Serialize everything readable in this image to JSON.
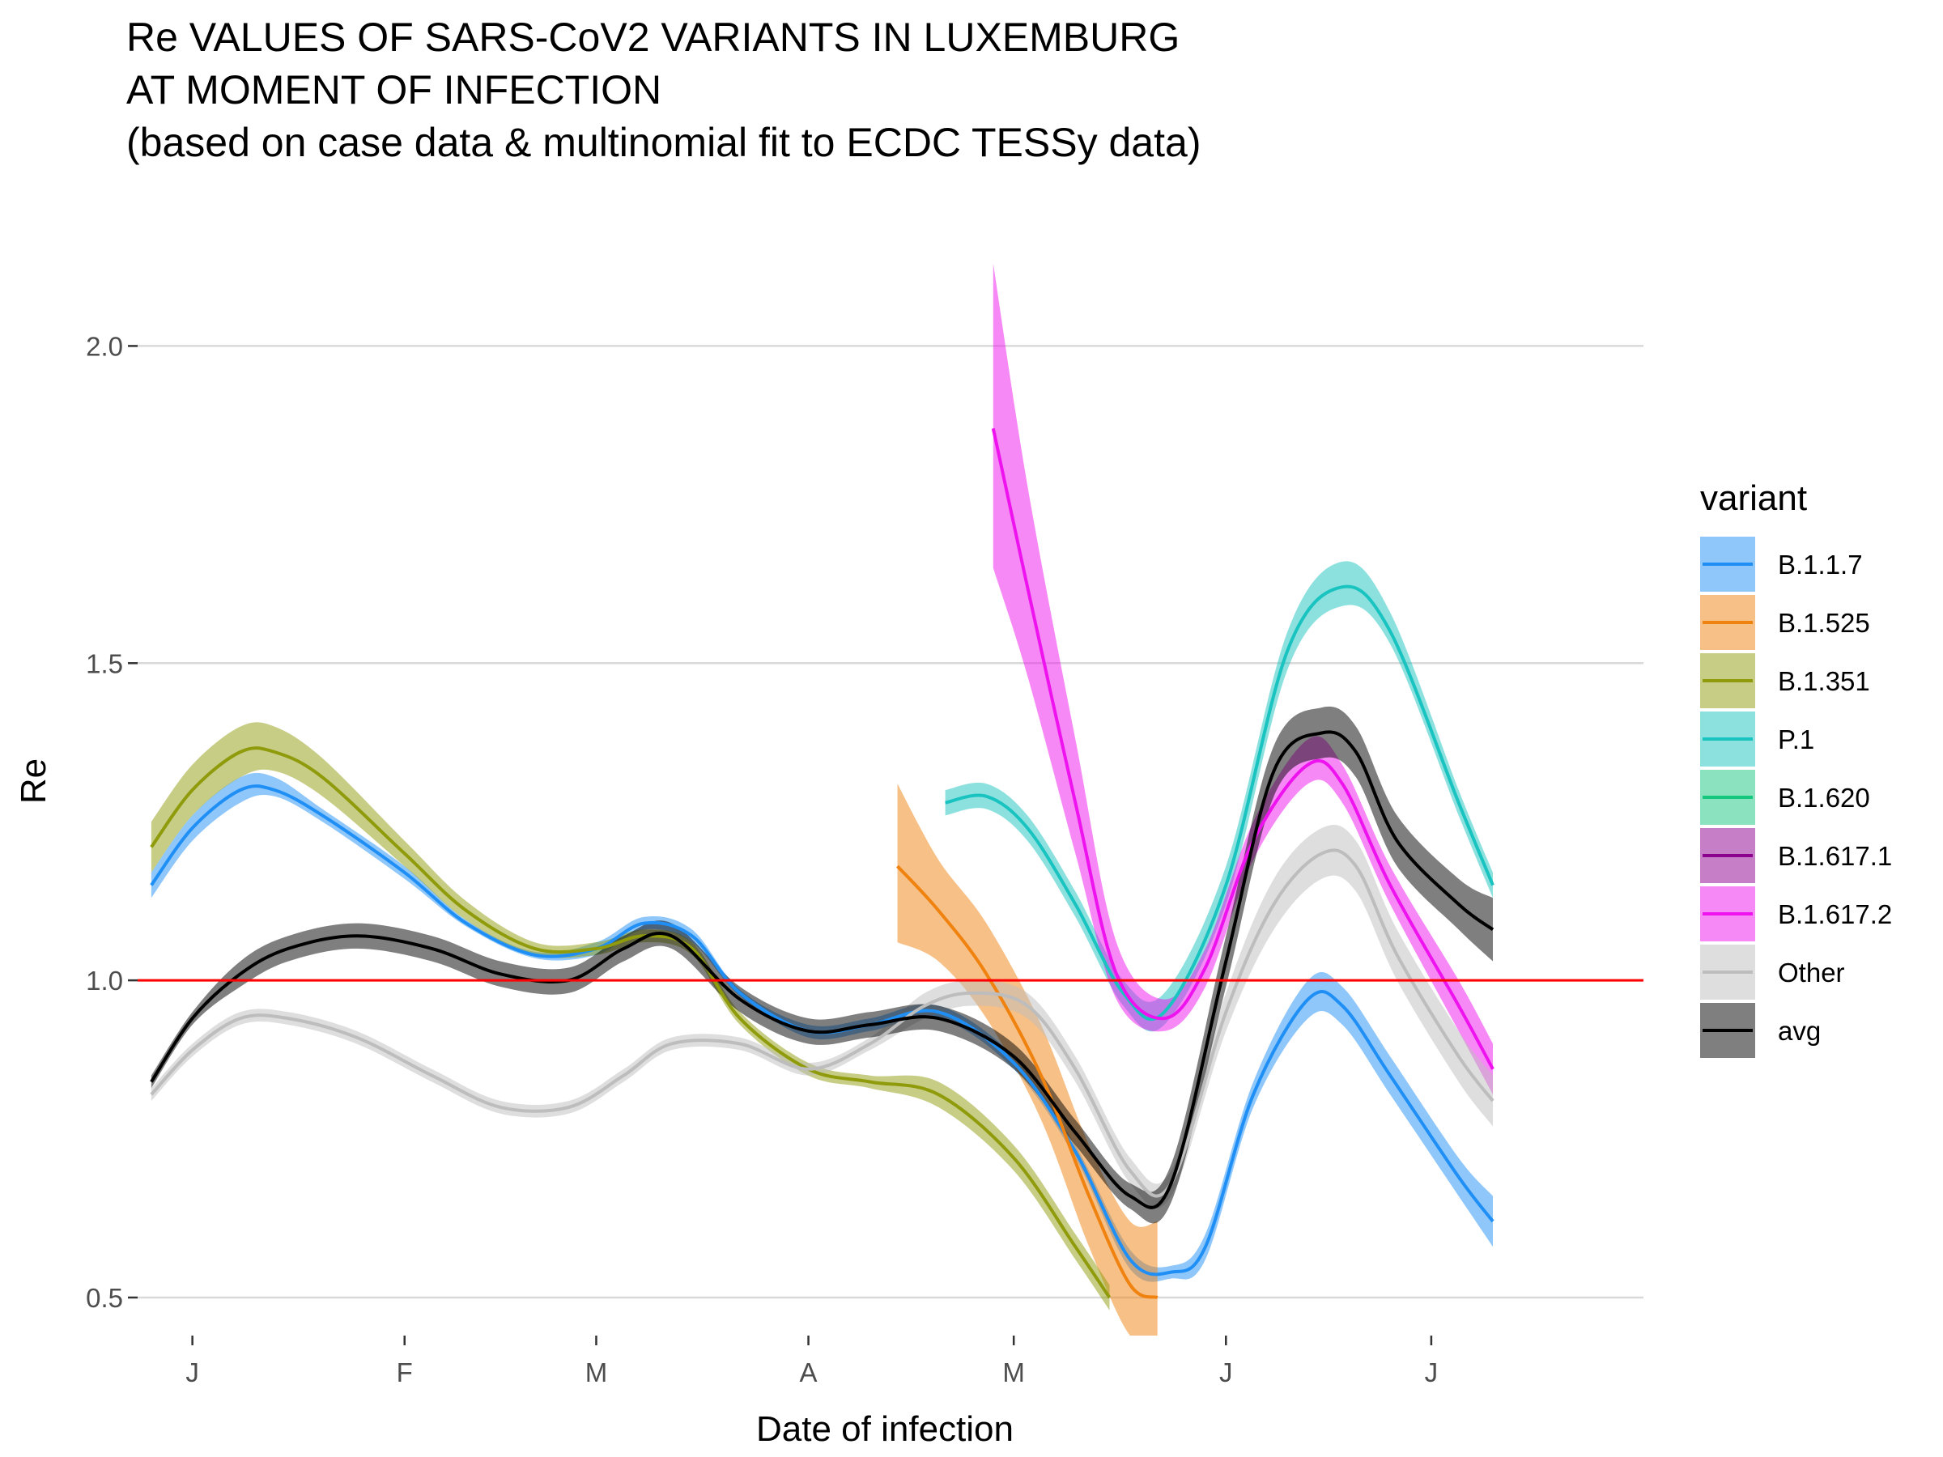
{
  "chart_data": {
    "type": "line",
    "title": [
      "Re VALUES OF SARS-CoV2 VARIANTS IN LUXEMBURG",
      "AT MOMENT OF INFECTION",
      "(based on case data & multinomial fit to ECDC TESSy data)"
    ],
    "xlabel": "Date of infection",
    "ylabel": "Re",
    "x_ticks": [
      {
        "date": "2021-01-01",
        "label": "J"
      },
      {
        "date": "2021-02-01",
        "label": "F"
      },
      {
        "date": "2021-03-01",
        "label": "M"
      },
      {
        "date": "2021-04-01",
        "label": "A"
      },
      {
        "date": "2021-05-01",
        "label": "M"
      },
      {
        "date": "2021-06-01",
        "label": "J"
      },
      {
        "date": "2021-07-01",
        "label": "J"
      }
    ],
    "xlim": [
      "2020-12-24",
      "2021-08-01"
    ],
    "y_ticks": [
      0.5,
      1.0,
      1.5,
      2.0
    ],
    "y_tick_labels": [
      "0.5",
      "1.0",
      "1.5",
      "2.0"
    ],
    "ylim": [
      0.44,
      2.22
    ],
    "reference_line": {
      "y": 1.0,
      "color": "#ff0000"
    },
    "grid": "horizontal major",
    "legend": {
      "title": "variant",
      "position": "right"
    },
    "series": [
      {
        "name": "B.1.1.7",
        "color": "#1f8ff6",
        "x": [
          "2020-12-26",
          "2021-01-01",
          "2021-01-08",
          "2021-01-13",
          "2021-01-20",
          "2021-02-01",
          "2021-02-10",
          "2021-02-20",
          "2021-03-01",
          "2021-03-08",
          "2021-03-15",
          "2021-03-22",
          "2021-04-01",
          "2021-04-10",
          "2021-04-20",
          "2021-05-01",
          "2021-05-10",
          "2021-05-18",
          "2021-05-24",
          "2021-05-29",
          "2021-06-05",
          "2021-06-13",
          "2021-06-18",
          "2021-06-25",
          "2021-07-05",
          "2021-07-10"
        ],
        "y": [
          1.15,
          1.24,
          1.3,
          1.3,
          1.26,
          1.17,
          1.09,
          1.04,
          1.05,
          1.09,
          1.07,
          0.98,
          0.92,
          0.93,
          0.95,
          0.87,
          0.73,
          0.56,
          0.54,
          0.58,
          0.82,
          0.97,
          0.96,
          0.85,
          0.69,
          0.62
        ],
        "lo": [
          1.13,
          1.22,
          1.28,
          1.29,
          1.25,
          1.16,
          1.085,
          1.035,
          1.04,
          1.08,
          1.06,
          0.975,
          0.91,
          0.92,
          0.94,
          0.86,
          0.72,
          0.545,
          0.53,
          0.56,
          0.8,
          0.94,
          0.93,
          0.82,
          0.66,
          0.58
        ],
        "hi": [
          1.17,
          1.26,
          1.32,
          1.32,
          1.27,
          1.18,
          1.095,
          1.045,
          1.06,
          1.1,
          1.08,
          0.985,
          0.93,
          0.94,
          0.96,
          0.88,
          0.74,
          0.575,
          0.55,
          0.6,
          0.84,
          1.0,
          0.99,
          0.88,
          0.72,
          0.66
        ]
      },
      {
        "name": "B.1.525",
        "color": "#f0820f",
        "x": [
          "2021-04-14",
          "2021-04-20",
          "2021-04-27",
          "2021-05-05",
          "2021-05-12",
          "2021-05-18",
          "2021-05-22"
        ],
        "y": [
          1.18,
          1.11,
          1.01,
          0.85,
          0.66,
          0.52,
          0.5
        ],
        "lo": [
          1.06,
          1.03,
          0.94,
          0.78,
          0.58,
          0.44,
          0.44
        ],
        "hi": [
          1.31,
          1.19,
          1.09,
          0.93,
          0.74,
          0.62,
          0.62
        ]
      },
      {
        "name": "B.1.351",
        "color": "#8f9b0b",
        "x": [
          "2020-12-26",
          "2021-01-01",
          "2021-01-08",
          "2021-01-13",
          "2021-01-20",
          "2021-02-01",
          "2021-02-10",
          "2021-02-20",
          "2021-03-01",
          "2021-03-08",
          "2021-03-15",
          "2021-03-22",
          "2021-04-01",
          "2021-04-10",
          "2021-04-20",
          "2021-05-01",
          "2021-05-10",
          "2021-05-15"
        ],
        "y": [
          1.21,
          1.3,
          1.36,
          1.36,
          1.32,
          1.2,
          1.11,
          1.05,
          1.05,
          1.07,
          1.05,
          0.94,
          0.86,
          0.84,
          0.82,
          0.72,
          0.58,
          0.5
        ],
        "lo": [
          1.17,
          1.26,
          1.32,
          1.33,
          1.29,
          1.18,
          1.095,
          1.04,
          1.04,
          1.06,
          1.04,
          0.93,
          0.85,
          0.83,
          0.8,
          0.7,
          0.56,
          0.48
        ],
        "hi": [
          1.25,
          1.34,
          1.4,
          1.4,
          1.35,
          1.22,
          1.125,
          1.06,
          1.06,
          1.08,
          1.06,
          0.95,
          0.87,
          0.85,
          0.84,
          0.74,
          0.6,
          0.52
        ]
      },
      {
        "name": "P.1",
        "color": "#19c3c0",
        "x": [
          "2021-04-21",
          "2021-04-27",
          "2021-05-03",
          "2021-05-10",
          "2021-05-17",
          "2021-05-23",
          "2021-06-01",
          "2021-06-10",
          "2021-06-18",
          "2021-06-25",
          "2021-07-05",
          "2021-07-10"
        ],
        "y": [
          1.28,
          1.29,
          1.24,
          1.12,
          0.98,
          0.95,
          1.15,
          1.52,
          1.62,
          1.55,
          1.28,
          1.15
        ],
        "lo": [
          1.26,
          1.27,
          1.22,
          1.1,
          0.96,
          0.93,
          1.12,
          1.49,
          1.59,
          1.53,
          1.26,
          1.13
        ],
        "hi": [
          1.3,
          1.31,
          1.26,
          1.14,
          1.0,
          0.98,
          1.18,
          1.55,
          1.66,
          1.58,
          1.3,
          1.17
        ]
      },
      {
        "name": "B.1.620",
        "color": "#16c87d",
        "x": [],
        "y": []
      },
      {
        "name": "B.1.617.1",
        "color": "#8e008e",
        "x": [],
        "y": []
      },
      {
        "name": "B.1.617.2",
        "color": "#ee13ee",
        "x": [
          "2021-04-28",
          "2021-05-03",
          "2021-05-10",
          "2021-05-16",
          "2021-05-23",
          "2021-05-29",
          "2021-06-05",
          "2021-06-13",
          "2021-06-18",
          "2021-06-25",
          "2021-07-05",
          "2021-07-10"
        ],
        "y": [
          1.87,
          1.62,
          1.28,
          1.01,
          0.94,
          1.02,
          1.22,
          1.34,
          1.31,
          1.15,
          0.96,
          0.86
        ],
        "lo": [
          1.65,
          1.48,
          1.2,
          0.97,
          0.92,
          0.99,
          1.19,
          1.31,
          1.28,
          1.12,
          0.92,
          0.82
        ],
        "hi": [
          2.13,
          1.78,
          1.38,
          1.06,
          0.97,
          1.05,
          1.25,
          1.38,
          1.34,
          1.18,
          1.0,
          0.9
        ]
      },
      {
        "name": "Other",
        "color": "#bdbdbd",
        "x": [
          "2020-12-26",
          "2021-01-01",
          "2021-01-08",
          "2021-01-15",
          "2021-01-25",
          "2021-02-05",
          "2021-02-15",
          "2021-02-25",
          "2021-03-05",
          "2021-03-12",
          "2021-03-22",
          "2021-04-01",
          "2021-04-10",
          "2021-04-18",
          "2021-04-25",
          "2021-05-03",
          "2021-05-10",
          "2021-05-18",
          "2021-05-24",
          "2021-06-01",
          "2021-06-08",
          "2021-06-15",
          "2021-06-20",
          "2021-06-26",
          "2021-07-05",
          "2021-07-10"
        ],
        "y": [
          0.82,
          0.89,
          0.94,
          0.94,
          0.91,
          0.85,
          0.8,
          0.8,
          0.85,
          0.9,
          0.9,
          0.86,
          0.9,
          0.96,
          0.98,
          0.96,
          0.86,
          0.7,
          0.68,
          0.95,
          1.12,
          1.2,
          1.18,
          1.04,
          0.88,
          0.81
        ],
        "lo": [
          0.81,
          0.88,
          0.93,
          0.93,
          0.9,
          0.84,
          0.79,
          0.79,
          0.84,
          0.89,
          0.89,
          0.85,
          0.89,
          0.94,
          0.96,
          0.94,
          0.84,
          0.68,
          0.66,
          0.92,
          1.08,
          1.16,
          1.14,
          1.0,
          0.84,
          0.77
        ],
        "hi": [
          0.83,
          0.9,
          0.95,
          0.95,
          0.92,
          0.86,
          0.81,
          0.81,
          0.86,
          0.91,
          0.91,
          0.87,
          0.91,
          0.98,
          1.0,
          0.98,
          0.88,
          0.72,
          0.7,
          0.98,
          1.16,
          1.24,
          1.22,
          1.08,
          0.92,
          0.85
        ]
      },
      {
        "name": "avg",
        "color": "#000000",
        "x": [
          "2020-12-26",
          "2021-01-01",
          "2021-01-08",
          "2021-01-15",
          "2021-01-25",
          "2021-02-05",
          "2021-02-15",
          "2021-02-25",
          "2021-03-05",
          "2021-03-12",
          "2021-03-22",
          "2021-04-01",
          "2021-04-10",
          "2021-04-20",
          "2021-05-01",
          "2021-05-10",
          "2021-05-18",
          "2021-05-24",
          "2021-06-01",
          "2021-06-08",
          "2021-06-15",
          "2021-06-20",
          "2021-06-26",
          "2021-07-05",
          "2021-07-10"
        ],
        "y": [
          0.84,
          0.94,
          1.01,
          1.05,
          1.07,
          1.05,
          1.01,
          1.0,
          1.05,
          1.07,
          0.97,
          0.92,
          0.93,
          0.94,
          0.88,
          0.76,
          0.66,
          0.68,
          1.03,
          1.33,
          1.39,
          1.36,
          1.22,
          1.12,
          1.08
        ],
        "lo": [
          0.83,
          0.93,
          0.99,
          1.03,
          1.05,
          1.03,
          0.99,
          0.98,
          1.03,
          1.05,
          0.95,
          0.9,
          0.91,
          0.92,
          0.86,
          0.74,
          0.64,
          0.65,
          0.99,
          1.29,
          1.35,
          1.32,
          1.18,
          1.08,
          1.03
        ],
        "hi": [
          0.85,
          0.95,
          1.03,
          1.07,
          1.09,
          1.07,
          1.03,
          1.02,
          1.07,
          1.09,
          0.99,
          0.94,
          0.95,
          0.96,
          0.9,
          0.78,
          0.68,
          0.71,
          1.07,
          1.37,
          1.43,
          1.4,
          1.26,
          1.16,
          1.13
        ]
      }
    ]
  }
}
